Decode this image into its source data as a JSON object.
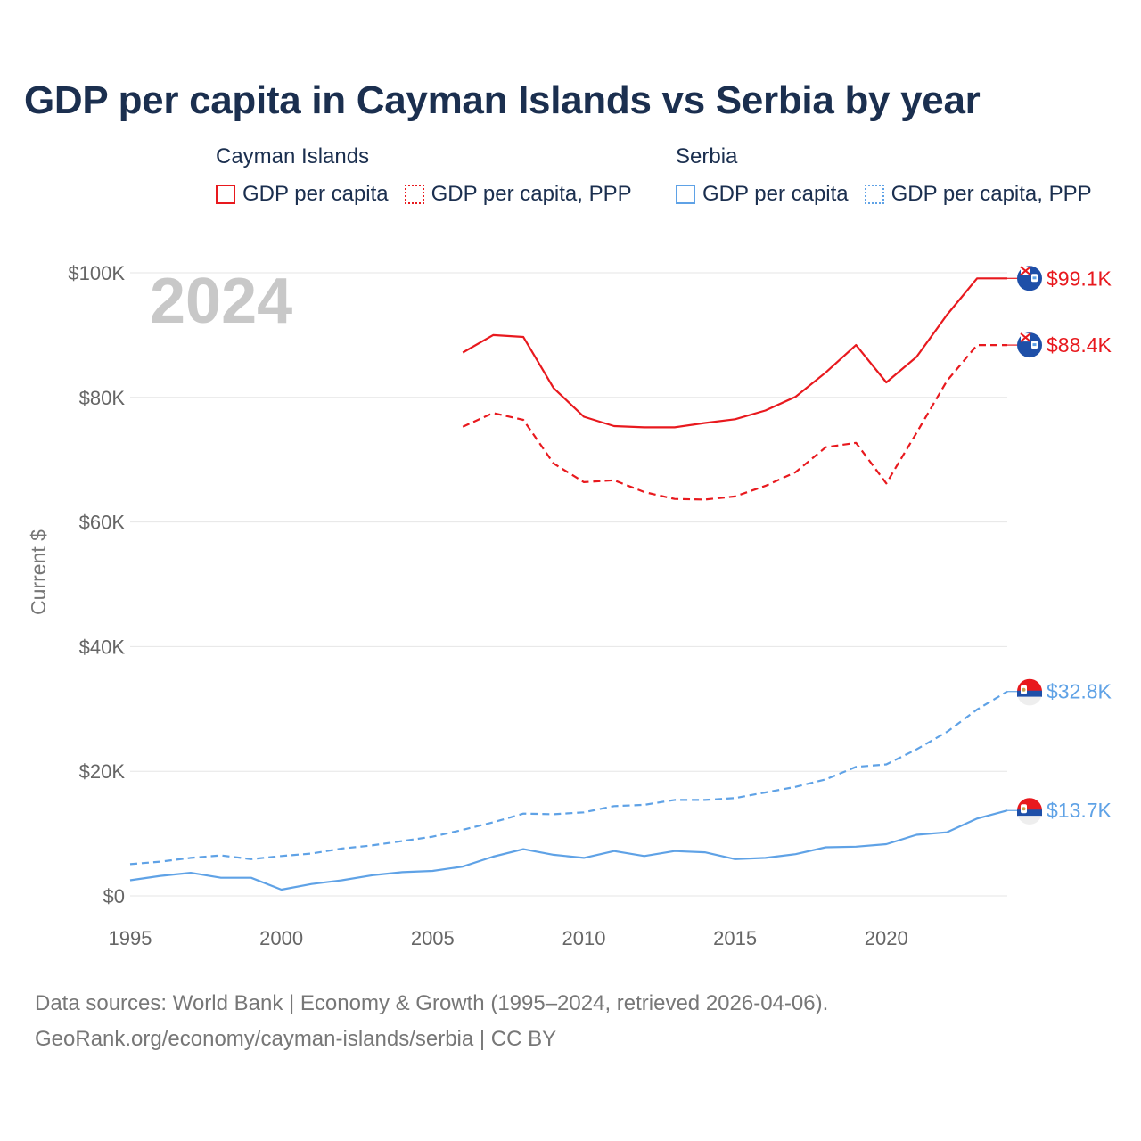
{
  "title": "GDP per capita in Cayman Islands vs Serbia by year",
  "legend": [
    {
      "country": "Cayman Islands",
      "color": "#e8191e",
      "items": [
        {
          "label": "GDP per capita",
          "style": "solid"
        },
        {
          "label": "GDP per capita, PPP",
          "style": "dotted"
        }
      ]
    },
    {
      "country": "Serbia",
      "color": "#5fa2e6",
      "items": [
        {
          "label": "GDP per capita",
          "style": "solid"
        },
        {
          "label": "GDP per capita, PPP",
          "style": "dotted"
        }
      ]
    }
  ],
  "sources": {
    "line1": "Data sources: World Bank | Economy & Growth (1995–2024, retrieved 2026-04-06).",
    "line2": "GeoRank.org/economy/cayman-islands/serbia | CC BY"
  },
  "chart_data": {
    "type": "line",
    "title": "GDP per capita in Cayman Islands vs Serbia by year",
    "year_watermark": "2024",
    "xlabel": "",
    "ylabel": "Current $",
    "xlim": [
      1995,
      2024
    ],
    "ylim": [
      0,
      100000
    ],
    "x_ticks": [
      1995,
      2000,
      2005,
      2010,
      2015,
      2020
    ],
    "x_tick_labels": [
      "1995",
      "2000",
      "2005",
      "2010",
      "2015",
      "2020"
    ],
    "y_ticks": [
      0,
      20000,
      40000,
      60000,
      80000,
      100000
    ],
    "y_tick_labels": [
      "$0",
      "$20K",
      "$40K",
      "$60K",
      "$80K",
      "$100K"
    ],
    "grid": true,
    "series": [
      {
        "name": "Cayman Islands GDP per capita",
        "color": "#e8191e",
        "dash": "solid",
        "end_label": "$99.1K",
        "end_value": 99100,
        "flag": "cayman-islands",
        "x": [
          2006,
          2007,
          2008,
          2009,
          2010,
          2011,
          2012,
          2013,
          2014,
          2015,
          2016,
          2017,
          2018,
          2019,
          2020,
          2021,
          2022,
          2023,
          2024
        ],
        "values": [
          87200,
          90000,
          89700,
          81500,
          76900,
          75400,
          75200,
          75200,
          75900,
          76500,
          77900,
          80100,
          84000,
          88400,
          82400,
          86500,
          93200,
          99100,
          99100
        ]
      },
      {
        "name": "Cayman Islands GDP per capita, PPP",
        "color": "#e8191e",
        "dash": "dashed",
        "end_label": "$88.4K",
        "end_value": 88400,
        "flag": "cayman-islands",
        "x": [
          2006,
          2007,
          2008,
          2009,
          2010,
          2011,
          2012,
          2013,
          2014,
          2015,
          2016,
          2017,
          2018,
          2019,
          2020,
          2021,
          2022,
          2023,
          2024
        ],
        "values": [
          75300,
          77500,
          76400,
          69400,
          66400,
          66700,
          64800,
          63700,
          63600,
          64100,
          65800,
          68000,
          72000,
          72700,
          66200,
          74300,
          82600,
          88400,
          88400
        ]
      },
      {
        "name": "Serbia GDP per capita, PPP",
        "color": "#5fa2e6",
        "dash": "dashed",
        "end_label": "$32.8K",
        "end_value": 32800,
        "flag": "serbia",
        "x": [
          1995,
          1996,
          1997,
          1998,
          1999,
          2000,
          2001,
          2002,
          2003,
          2004,
          2005,
          2006,
          2007,
          2008,
          2009,
          2010,
          2011,
          2012,
          2013,
          2014,
          2015,
          2016,
          2017,
          2018,
          2019,
          2020,
          2021,
          2022,
          2023,
          2024
        ],
        "values": [
          5100,
          5500,
          6100,
          6500,
          5900,
          6400,
          6800,
          7600,
          8100,
          8800,
          9500,
          10600,
          11800,
          13200,
          13100,
          13400,
          14400,
          14600,
          15400,
          15400,
          15700,
          16600,
          17500,
          18700,
          20700,
          21100,
          23500,
          26300,
          29900,
          32800
        ]
      },
      {
        "name": "Serbia GDP per capita",
        "color": "#5fa2e6",
        "dash": "solid",
        "end_label": "$13.7K",
        "end_value": 13700,
        "flag": "serbia",
        "x": [
          1995,
          1996,
          1997,
          1998,
          1999,
          2000,
          2001,
          2002,
          2003,
          2004,
          2005,
          2006,
          2007,
          2008,
          2009,
          2010,
          2011,
          2012,
          2013,
          2014,
          2015,
          2016,
          2017,
          2018,
          2019,
          2020,
          2021,
          2022,
          2023,
          2024
        ],
        "values": [
          2500,
          3200,
          3700,
          2900,
          2900,
          1000,
          1900,
          2500,
          3300,
          3800,
          4000,
          4700,
          6300,
          7500,
          6600,
          6100,
          7200,
          6400,
          7200,
          7000,
          5900,
          6100,
          6700,
          7800,
          7900,
          8300,
          9800,
          10200,
          12400,
          13700
        ]
      }
    ]
  }
}
